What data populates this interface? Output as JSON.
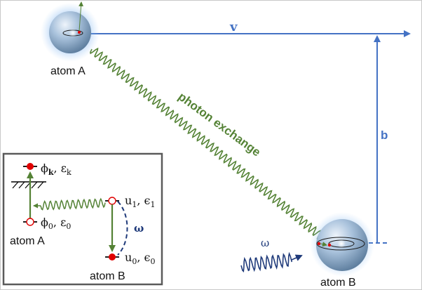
{
  "main": {
    "velocity_label": "v",
    "impact_label": "b",
    "exchange_label": "photon exchange",
    "atom_a_label": "atom A",
    "atom_b_label": "atom B",
    "incoming_photon_label": "ω"
  },
  "inset": {
    "level_k": "ϕ",
    "level_k_sub": "k",
    "level_k_energy": ", ε",
    "level_k_energy_sub": "k",
    "level_0": "ϕ",
    "level_0_sub": "0",
    "level_0_energy": ", ε",
    "level_0_energy_sub": "0",
    "atom_a_label": "atom A",
    "b_level_1": "u",
    "b_level_1_sub": "1",
    "b_level_1_energy": ", ϵ",
    "b_level_1_energy_sub": "1",
    "b_level_0": "u",
    "b_level_0_sub": "0",
    "b_level_0_energy": ", ϵ",
    "b_level_0_energy_sub": "0",
    "omega_label": "ω",
    "atom_b_label": "atom B"
  },
  "colors": {
    "blue_arrow": "#4472c4",
    "photon_green": "#548235",
    "level_red": "#e00000",
    "dark_blue": "#1f3a7a"
  }
}
